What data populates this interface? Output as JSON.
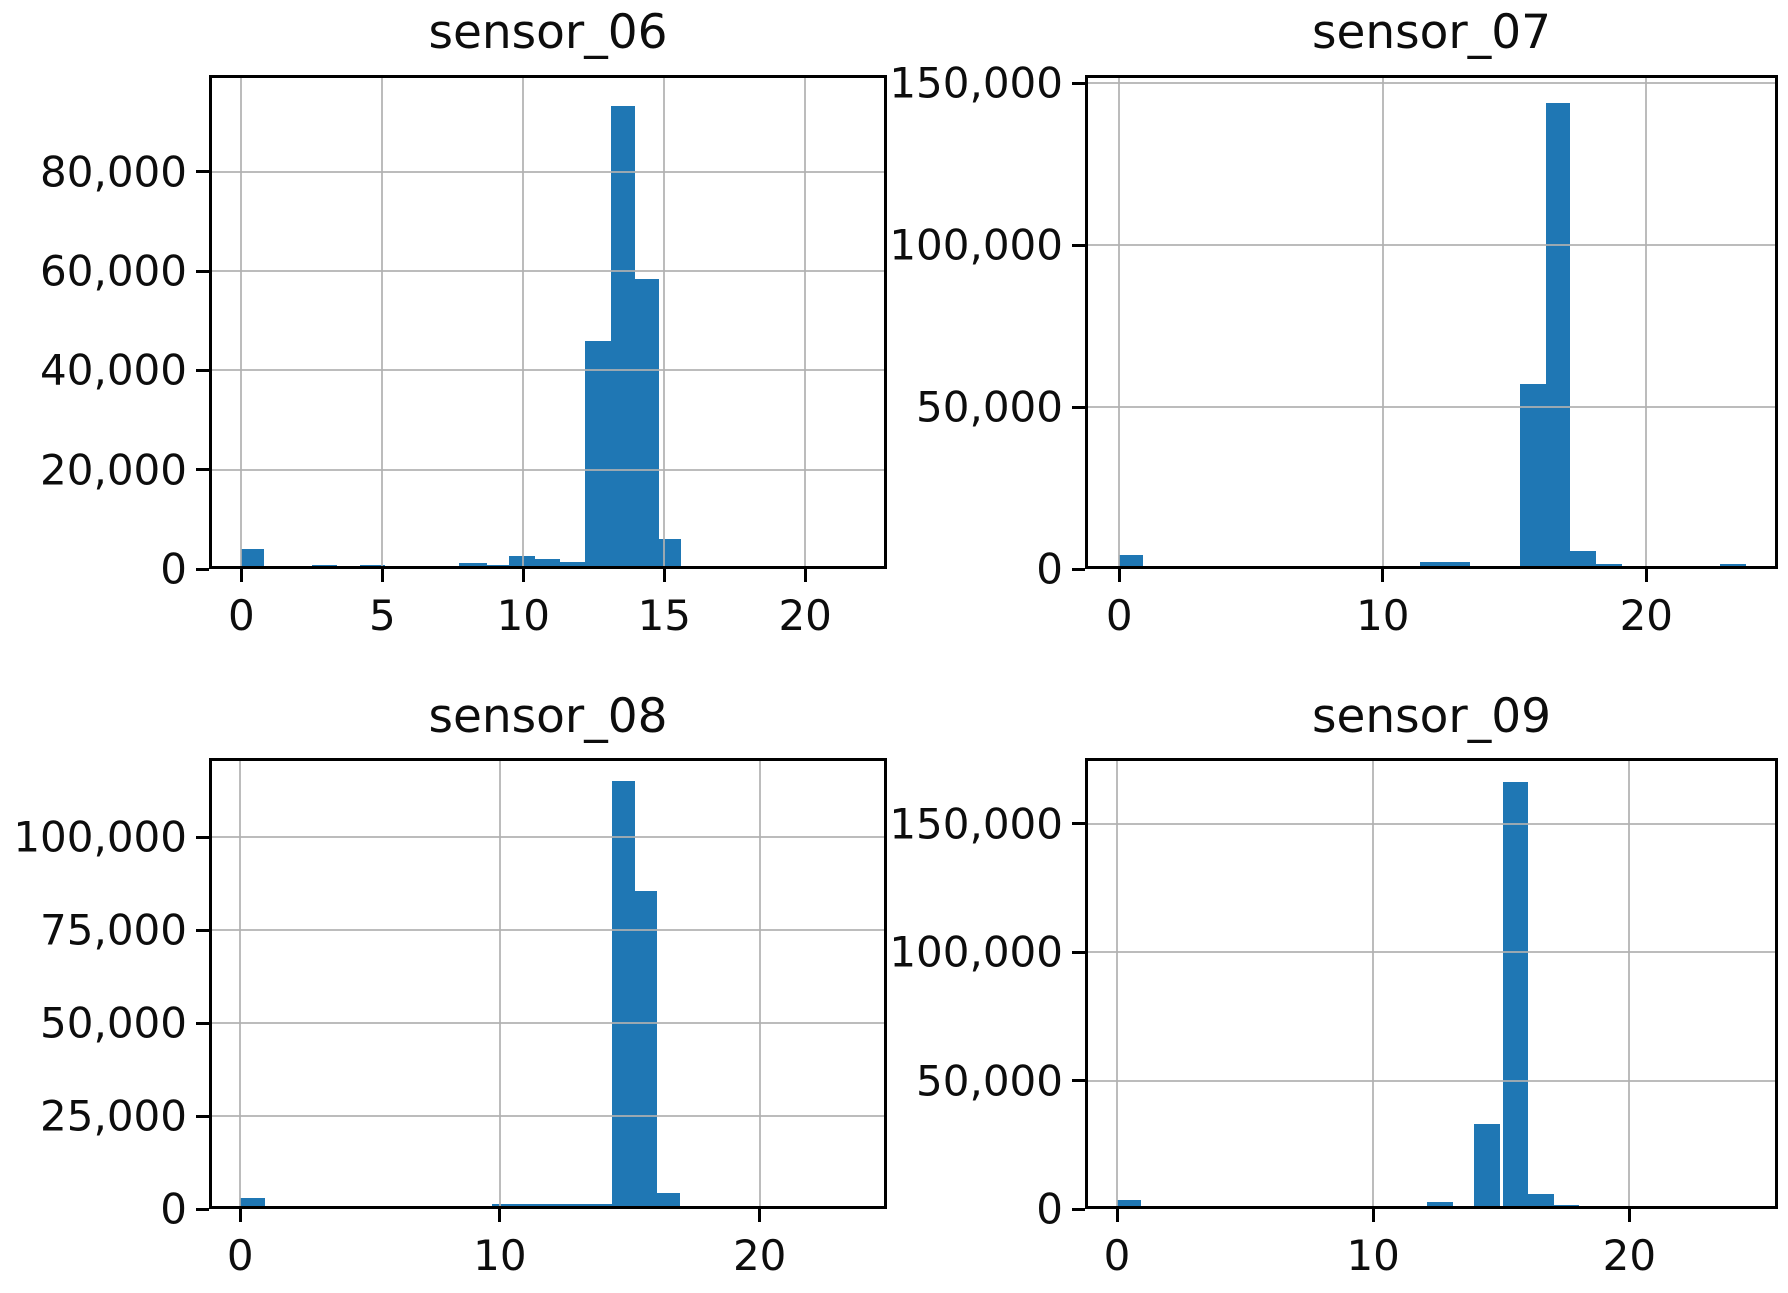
{
  "figure": {
    "background_color": "#ffffff",
    "bar_color": "#1f77b4",
    "grid_color": "#b0b0b0",
    "grid": true,
    "layout": "2x2-subplot-grid"
  },
  "chart_data": [
    {
      "type": "bar",
      "subtype": "histogram",
      "title": "sensor_06",
      "xlabel": "",
      "ylabel": "",
      "xlim": [
        -1.15,
        22.9
      ],
      "ylim": [
        0,
        99500
      ],
      "xticks": [
        0,
        5,
        10,
        15,
        20
      ],
      "xtick_labels": [
        "0",
        "5",
        "10",
        "15",
        "20"
      ],
      "yticks": [
        0,
        20000,
        40000,
        60000,
        80000
      ],
      "ytick_labels": [
        "0",
        "20,000",
        "40,000",
        "60,000",
        "80,000"
      ],
      "bars": [
        {
          "x": 0.0,
          "w": 0.8,
          "count": 4100
        },
        {
          "x": 2.5,
          "w": 0.9,
          "count": 800
        },
        {
          "x": 4.2,
          "w": 0.9,
          "count": 800
        },
        {
          "x": 6.1,
          "w": 1.6,
          "count": 700
        },
        {
          "x": 7.7,
          "w": 1.0,
          "count": 1300
        },
        {
          "x": 8.7,
          "w": 0.8,
          "count": 900
        },
        {
          "x": 9.5,
          "w": 0.9,
          "count": 2700
        },
        {
          "x": 10.4,
          "w": 0.9,
          "count": 2100
        },
        {
          "x": 11.3,
          "w": 0.9,
          "count": 1350
        },
        {
          "x": 12.2,
          "w": 0.9,
          "count": 46000
        },
        {
          "x": 13.1,
          "w": 0.85,
          "count": 93300
        },
        {
          "x": 13.95,
          "w": 0.85,
          "count": 58500
        },
        {
          "x": 14.8,
          "w": 0.8,
          "count": 6000
        }
      ]
    },
    {
      "type": "bar",
      "subtype": "histogram",
      "title": "sensor_07",
      "xlabel": "",
      "ylabel": "",
      "xlim": [
        -1.3,
        25.0
      ],
      "ylim": [
        0,
        152500
      ],
      "xticks": [
        0,
        10,
        20
      ],
      "xtick_labels": [
        "0",
        "10",
        "20"
      ],
      "yticks": [
        0,
        50000,
        100000,
        150000
      ],
      "ytick_labels": [
        "0",
        "50,000",
        "100,000",
        "150,000"
      ],
      "bars": [
        {
          "x": 0.0,
          "w": 0.9,
          "count": 4300
        },
        {
          "x": 9.5,
          "w": 0.9,
          "count": 900
        },
        {
          "x": 10.4,
          "w": 1.0,
          "count": 1000
        },
        {
          "x": 11.4,
          "w": 1.9,
          "count": 2200
        },
        {
          "x": 13.3,
          "w": 1.9,
          "count": 1000
        },
        {
          "x": 15.2,
          "w": 1.0,
          "count": 57000
        },
        {
          "x": 16.2,
          "w": 0.9,
          "count": 144000
        },
        {
          "x": 17.1,
          "w": 1.0,
          "count": 5500
        },
        {
          "x": 18.1,
          "w": 1.0,
          "count": 1500
        },
        {
          "x": 22.8,
          "w": 1.0,
          "count": 1500
        }
      ]
    },
    {
      "type": "bar",
      "subtype": "histogram",
      "title": "sensor_08",
      "xlabel": "",
      "ylabel": "",
      "xlim": [
        -1.2,
        24.9
      ],
      "ylim": [
        0,
        121300
      ],
      "xticks": [
        0,
        10,
        20
      ],
      "xtick_labels": [
        "0",
        "10",
        "20"
      ],
      "yticks": [
        0,
        25000,
        50000,
        75000,
        100000
      ],
      "ytick_labels": [
        "0",
        "25,000",
        "50,000",
        "75,000",
        "100,000"
      ],
      "bars": [
        {
          "x": 0.0,
          "w": 0.95,
          "count": 3000
        },
        {
          "x": 8.6,
          "w": 1.1,
          "count": 700
        },
        {
          "x": 9.7,
          "w": 4.6,
          "count": 1300
        },
        {
          "x": 14.3,
          "w": 0.9,
          "count": 115000
        },
        {
          "x": 15.2,
          "w": 0.85,
          "count": 85500
        },
        {
          "x": 16.05,
          "w": 0.9,
          "count": 4200
        },
        {
          "x": 16.95,
          "w": 0.95,
          "count": 900
        }
      ]
    },
    {
      "type": "bar",
      "subtype": "histogram",
      "title": "sensor_09",
      "xlabel": "",
      "ylabel": "",
      "xlim": [
        -1.25,
        25.8
      ],
      "ylim": [
        0,
        175500
      ],
      "xticks": [
        0,
        10,
        20
      ],
      "xtick_labels": [
        "0",
        "10",
        "20"
      ],
      "yticks": [
        0,
        50000,
        100000,
        150000
      ],
      "ytick_labels": [
        "0",
        "50,000",
        "100,000",
        "150,000"
      ],
      "bars": [
        {
          "x": 0.0,
          "w": 0.95,
          "count": 3500
        },
        {
          "x": 10.1,
          "w": 2.0,
          "count": 900
        },
        {
          "x": 12.1,
          "w": 1.0,
          "count": 2600
        },
        {
          "x": 13.1,
          "w": 0.85,
          "count": 900
        },
        {
          "x": 13.95,
          "w": 1.0,
          "count": 33000
        },
        {
          "x": 15.05,
          "w": 1.0,
          "count": 166000
        },
        {
          "x": 16.05,
          "w": 1.0,
          "count": 6000
        },
        {
          "x": 17.05,
          "w": 1.0,
          "count": 1500
        }
      ]
    }
  ]
}
